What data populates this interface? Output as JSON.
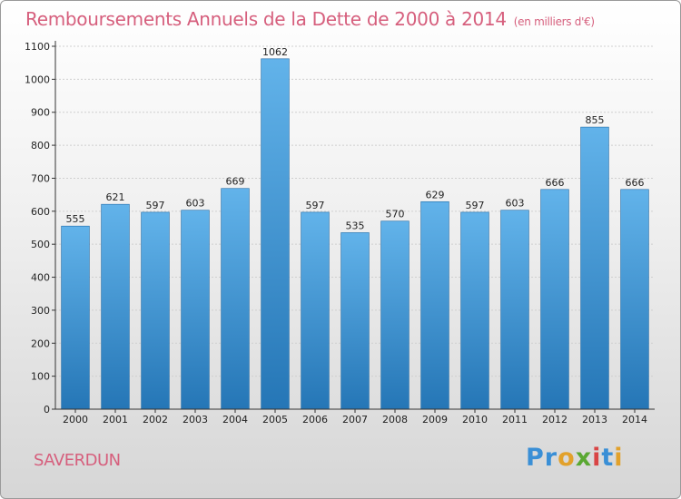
{
  "title": "Remboursements Annuels de la Dette de 2000 à 2014",
  "unit": "(en milliers d'€)",
  "commune": "SAVERDUN",
  "logo": {
    "letters": [
      {
        "ch": "P",
        "color": "#3a8fd6"
      },
      {
        "ch": "r",
        "color": "#3a8fd6"
      },
      {
        "ch": "o",
        "color": "#e2a12b"
      },
      {
        "ch": "x",
        "color": "#5aa832"
      },
      {
        "ch": "i",
        "color": "#d94545"
      },
      {
        "ch": "t",
        "color": "#3a8fd6"
      },
      {
        "ch": "i",
        "color": "#e2a12b"
      }
    ]
  },
  "colors": {
    "bar_top": "#62b3ea",
    "bar_bottom": "#2576b6",
    "title": "#d65f7d"
  },
  "chart_data": {
    "type": "bar",
    "categories": [
      "2000",
      "2001",
      "2002",
      "2003",
      "2004",
      "2005",
      "2006",
      "2007",
      "2008",
      "2009",
      "2010",
      "2011",
      "2012",
      "2013",
      "2014"
    ],
    "values": [
      555,
      621,
      597,
      603,
      669,
      1062,
      597,
      535,
      570,
      629,
      597,
      603,
      666,
      855,
      666
    ],
    "ylim": [
      0,
      1100
    ],
    "yticks": [
      0,
      100,
      200,
      300,
      400,
      500,
      600,
      700,
      800,
      900,
      1000,
      1100
    ],
    "grid": true
  }
}
